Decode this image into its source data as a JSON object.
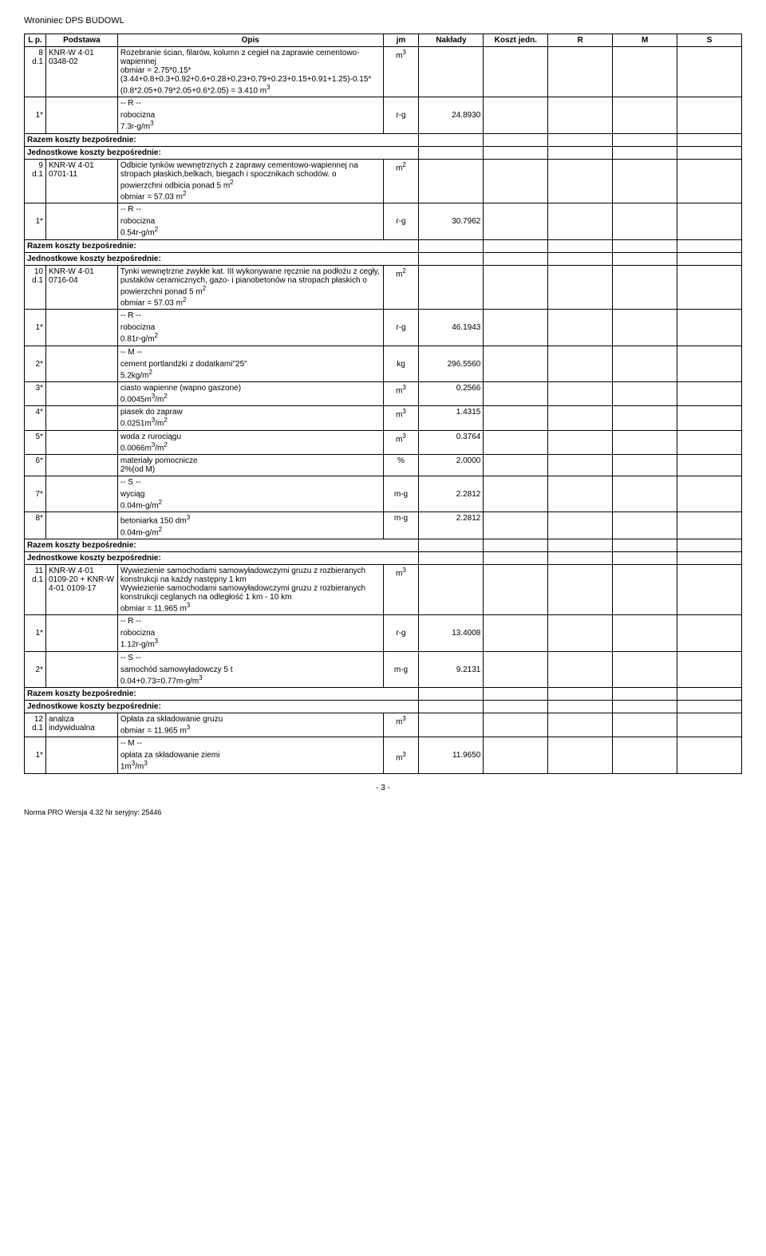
{
  "document": {
    "header_title": "Wroniniec DPS BUDOWL",
    "page_number": "- 3 -",
    "footer_text": "Norma PRO Wersja 4.32 Nr seryjny: 25446"
  },
  "columns": {
    "lp": "L p.",
    "podstawa": "Podstawa",
    "opis": "Opis",
    "jm": "jm",
    "naklady": "Nakłady",
    "koszt": "Koszt jedn.",
    "r": "R",
    "m": "M",
    "s": "S"
  },
  "labels": {
    "razem": "Razem koszty bezpośrednie:",
    "jednostkowe": "Jednostkowe koszty bezpośrednie:",
    "r_marker": "-- R --",
    "m_marker": "-- M --",
    "s_marker": "-- S --"
  },
  "rows": [
    {
      "lp": "8 d.1",
      "pod": "KNR-W 4-01 0348-02",
      "opis": "Rozebranie ścian, filarów, kolumn z cegieł na zaprawie cementowo-wapiennej\nobmiar = 2.75*0.15*(3.44+0.8+0.3+0.92+0.6+0.28+0.23+0.79+0.23+0.15+0.91+1.25)-0.15*(0.8*2.05+0.79*2.05+0.6*2.05) = 3.410 m3",
      "jm": "m3"
    },
    {
      "lp": "1*",
      "opis_pre": "-- R --",
      "opis": "robocizna\n7.3r-g/m3",
      "jm": "r-g",
      "nak": "24.8930"
    },
    {
      "type": "razem"
    },
    {
      "type": "jedn"
    },
    {
      "lp": "9 d.1",
      "pod": "KNR-W 4-01 0701-11",
      "opis": "Odbicie tynków wewnętrznych z zaprawy cementowo-wapiennej na stropach płaskich,belkach, biegach i spocznikach schodów. o powierzchni odbicia ponad 5 m2\nobmiar = 57.03 m2",
      "jm": "m2"
    },
    {
      "lp": "1*",
      "opis_pre": "-- R --",
      "opis": "robocizna\n0.54r-g/m2",
      "jm": "r-g",
      "nak": "30.7962"
    },
    {
      "type": "razem"
    },
    {
      "type": "jedn"
    },
    {
      "lp": "10 d.1",
      "pod": "KNR-W 4-01 0716-04",
      "opis": "Tynki wewnętrzne zwykłe kat. III wykonywane ręcznie na podłożu z cegły, pustaków ceramicznych, gazo- i pianobetonów na stropach płaskich o powierzchni ponad 5 m2\nobmiar = 57.03 m2",
      "jm": "m2"
    },
    {
      "lp": "1*",
      "opis_pre": "-- R --",
      "opis": "robocizna\n0.81r-g/m2",
      "jm": "r-g",
      "nak": "46.1943"
    },
    {
      "lp": "2*",
      "opis_pre": "-- M --",
      "opis": "cement portlandzki z dodatkami\"25\"\n5.2kg/m2",
      "jm": "kg",
      "nak": "296.5560"
    },
    {
      "lp": "3*",
      "opis": "ciasto wapienne (wapno gaszone)\n0.0045m3/m2",
      "jm": "m3",
      "nak": "0.2566"
    },
    {
      "lp": "4*",
      "opis": "piasek do zapraw\n0.0251m3/m2",
      "jm": "m3",
      "nak": "1.4315"
    },
    {
      "lp": "5*",
      "opis": "woda z rurociągu\n0.0066m3/m2",
      "jm": "m3",
      "nak": "0.3764"
    },
    {
      "lp": "6*",
      "opis": "materiały pomocnicze\n2%(od M)",
      "jm": "%",
      "nak": "2.0000"
    },
    {
      "lp": "7*",
      "opis_pre": "-- S --",
      "opis": "wyciąg\n0.04m-g/m2",
      "jm": "m-g",
      "nak": "2.2812"
    },
    {
      "lp": "8*",
      "opis": "betoniarka 150 dm3\n0.04m-g/m2",
      "jm": "m-g",
      "nak": "2.2812"
    },
    {
      "type": "razem"
    },
    {
      "type": "jedn"
    },
    {
      "lp": "11 d.1",
      "pod": "KNR-W 4-01 0109-20 + KNR-W 4-01 0109-17",
      "opis": "Wywiezienie samochodami samowyładowczymi gruzu z rozbieranych konstrukcji na każdy następny 1 km\nWywiezienie samochodami samowyładowczymi gruzu z rozbieranych konstrukcji ceglanych na odległość 1 km - 10 km\nobmiar = 11.965 m3",
      "jm": "m3"
    },
    {
      "lp": "1*",
      "opis_pre": "-- R --",
      "opis": "robocizna\n1.12r-g/m3",
      "jm": "r-g",
      "nak": "13.4008"
    },
    {
      "lp": "2*",
      "opis_pre": "-- S --",
      "opis": "samochód samowyładowczy 5 t\n0.04+0.73=0.77m-g/m3",
      "jm": "m-g",
      "nak": "9.2131"
    },
    {
      "type": "razem"
    },
    {
      "type": "jedn"
    },
    {
      "lp": "12 d.1",
      "pod": "analiza indywidualna",
      "opis": "Opłata za składowanie gruzu\nobmiar = 11.965 m3",
      "jm": "m3"
    },
    {
      "lp": "1*",
      "opis_pre": "-- M --",
      "opis": "opłata za składowanie ziemi\n1m3/m3",
      "jm": "m3",
      "nak": "11.9650"
    }
  ]
}
